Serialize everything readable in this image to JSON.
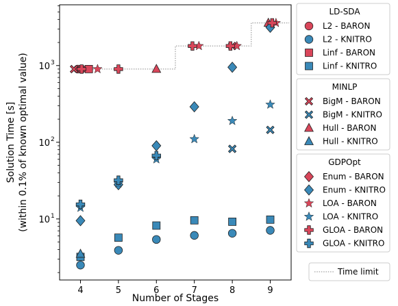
{
  "colors": {
    "red": "#d9465a",
    "blue": "#3a89b8",
    "edge": "#1f1f1f",
    "limit": "#888888"
  },
  "chart_data": {
    "type": "scatter",
    "xlabel": "Number of Stages",
    "ylabel": [
      "Solution Time [s]",
      "(within 0.1% of known optimal value)"
    ],
    "yscale": "log",
    "xlim": [
      3.45,
      9.55
    ],
    "ylim": [
      1.6,
      6200
    ],
    "x_ticks": [
      4,
      5,
      6,
      7,
      8,
      9
    ],
    "y_ticks": [
      {
        "value": 10,
        "base": "10",
        "exp": "1"
      },
      {
        "value": 100,
        "base": "10",
        "exp": "2"
      },
      {
        "value": 1000,
        "base": "10",
        "exp": "3"
      }
    ],
    "time_limit": {
      "label": "Time limit",
      "steps": [
        [
          3.85,
          900
        ],
        [
          6.5,
          900
        ],
        [
          6.5,
          1800
        ],
        [
          8.5,
          1800
        ],
        [
          8.5,
          3600
        ],
        [
          9.5,
          3600
        ]
      ]
    },
    "series": [
      {
        "name": "L2 - BARON",
        "marker": "circle",
        "color": "red",
        "points": [
          [
            3.93,
            900
          ],
          [
            4.03,
            900
          ]
        ]
      },
      {
        "name": "L2 - KNITRO",
        "marker": "circle",
        "color": "blue",
        "points": [
          [
            4,
            2.5
          ],
          [
            5,
            3.9
          ],
          [
            6,
            5.4
          ],
          [
            7,
            6.1
          ],
          [
            8,
            6.5
          ],
          [
            9,
            7.1
          ]
        ]
      },
      {
        "name": "Linf - BARON",
        "marker": "square",
        "color": "red",
        "points": [
          [
            4.22,
            900
          ]
        ]
      },
      {
        "name": "Linf - KNITRO",
        "marker": "square",
        "color": "blue",
        "points": [
          [
            4,
            3.2
          ],
          [
            5,
            5.7
          ],
          [
            6,
            8.2
          ],
          [
            7,
            9.6
          ],
          [
            8,
            9.2
          ],
          [
            9,
            9.8
          ]
        ]
      },
      {
        "name": "BigM - BARON",
        "marker": "x",
        "color": "red",
        "points": [
          [
            3.83,
            900
          ],
          [
            8,
            1800
          ]
        ]
      },
      {
        "name": "BigM - KNITRO",
        "marker": "x",
        "color": "blue",
        "points": [
          [
            8,
            82
          ],
          [
            9,
            145
          ]
        ]
      },
      {
        "name": "Hull - BARON",
        "marker": "triangle",
        "color": "red",
        "points": [
          [
            6,
            900
          ],
          [
            8.95,
            3600
          ]
        ]
      },
      {
        "name": "Hull - KNITRO",
        "marker": "triangle",
        "color": "blue",
        "points": [
          [
            4,
            3.5
          ]
        ]
      },
      {
        "name": "Enum - BARON",
        "marker": "diamond",
        "color": "red",
        "points": []
      },
      {
        "name": "Enum - KNITRO",
        "marker": "diamond",
        "color": "blue",
        "points": [
          [
            4,
            9.5
          ],
          [
            5,
            28
          ],
          [
            6,
            90
          ],
          [
            7,
            290
          ],
          [
            8,
            950
          ],
          [
            9,
            3150
          ]
        ]
      },
      {
        "name": "LOA - BARON",
        "marker": "star",
        "color": "red",
        "points": [
          [
            4.45,
            900
          ],
          [
            7.12,
            1800
          ],
          [
            8.12,
            1800
          ],
          [
            9.15,
            3600
          ]
        ]
      },
      {
        "name": "LOA - KNITRO",
        "marker": "star",
        "color": "blue",
        "points": [
          [
            4,
            14
          ],
          [
            5,
            29
          ],
          [
            6,
            60
          ],
          [
            7,
            110
          ],
          [
            8,
            190
          ],
          [
            9,
            310
          ]
        ]
      },
      {
        "name": "GLOA - BARON",
        "marker": "plus",
        "color": "red",
        "points": [
          [
            4.03,
            900
          ],
          [
            5,
            900
          ],
          [
            6.95,
            1800
          ],
          [
            7.95,
            1800
          ],
          [
            9.05,
            3600
          ]
        ]
      },
      {
        "name": "GLOA - KNITRO",
        "marker": "plus",
        "color": "blue",
        "points": [
          [
            4,
            15.5
          ],
          [
            5,
            32
          ],
          [
            6,
            67
          ]
        ]
      }
    ],
    "legend": [
      {
        "title": "LD-SDA",
        "entries": [
          "L2 - BARON",
          "L2 - KNITRO",
          "Linf - BARON",
          "Linf - KNITRO"
        ]
      },
      {
        "title": "MINLP",
        "entries": [
          "BigM - BARON",
          "BigM - KNITRO",
          "Hull - BARON",
          "Hull - KNITRO"
        ]
      },
      {
        "title": "GDPOpt",
        "entries": [
          "Enum - BARON",
          "Enum - KNITRO",
          "LOA - BARON",
          "LOA - KNITRO",
          "GLOA - BARON",
          "GLOA - KNITRO"
        ]
      }
    ],
    "legend_placement": "right"
  }
}
